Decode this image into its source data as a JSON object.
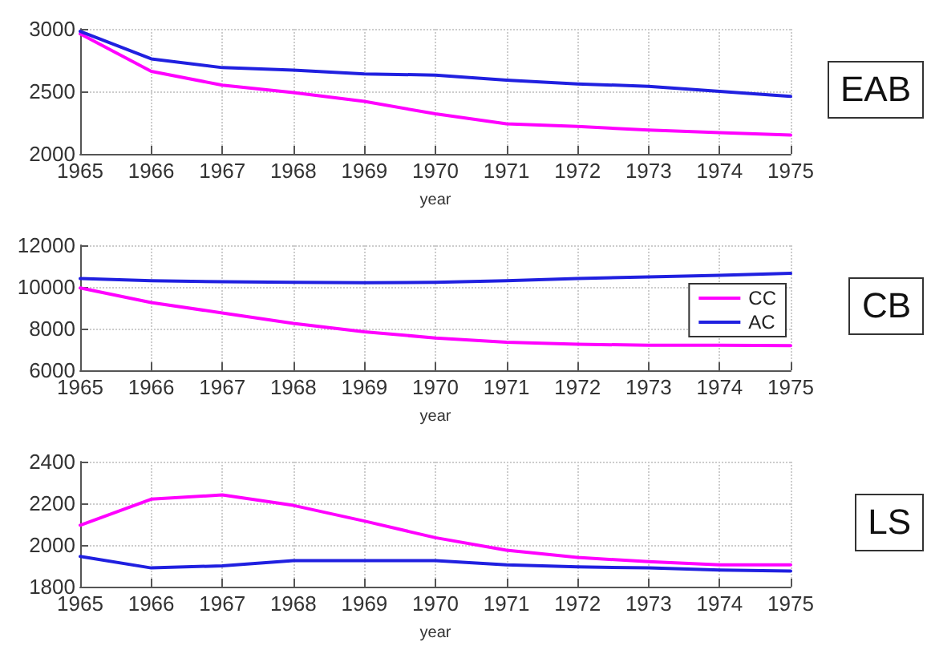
{
  "chart_data": [
    {
      "type": "line",
      "annotations": [
        "EAB"
      ],
      "xlabel": "year",
      "x": [
        1965,
        1966,
        1967,
        1968,
        1969,
        1970,
        1971,
        1972,
        1973,
        1974,
        1975
      ],
      "xlim": [
        1965,
        1975
      ],
      "xticks": [
        1965,
        1966,
        1967,
        1968,
        1969,
        1970,
        1971,
        1972,
        1973,
        1974,
        1975
      ],
      "ylim": [
        2000,
        3000
      ],
      "yticks": [
        2000,
        2500,
        3000
      ],
      "grid": true,
      "legend": false,
      "series": [
        {
          "color": "#ff00ff",
          "values": [
            2960,
            2660,
            2550,
            2490,
            2420,
            2320,
            2240,
            2220,
            2190,
            2170,
            2150
          ]
        },
        {
          "color": "#2020e0",
          "values": [
            2980,
            2760,
            2690,
            2670,
            2640,
            2630,
            2590,
            2560,
            2540,
            2500,
            2460
          ]
        }
      ]
    },
    {
      "type": "line",
      "annotations": [
        "CB"
      ],
      "xlabel": "year",
      "x": [
        1965,
        1966,
        1967,
        1968,
        1969,
        1970,
        1971,
        1972,
        1973,
        1974,
        1975
      ],
      "xlim": [
        1965,
        1975
      ],
      "xticks": [
        1965,
        1966,
        1967,
        1968,
        1969,
        1970,
        1971,
        1972,
        1973,
        1974,
        1975
      ],
      "ylim": [
        6000,
        12000
      ],
      "yticks": [
        6000,
        8000,
        10000,
        12000
      ],
      "grid": true,
      "legend": "right",
      "series": [
        {
          "name": "CC",
          "color": "#ff00ff",
          "values": [
            9950,
            9250,
            8750,
            8250,
            7850,
            7550,
            7350,
            7250,
            7200,
            7200,
            7180
          ]
        },
        {
          "name": "AC",
          "color": "#2020e0",
          "values": [
            10400,
            10300,
            10250,
            10220,
            10200,
            10220,
            10300,
            10400,
            10480,
            10560,
            10650
          ]
        }
      ]
    },
    {
      "type": "line",
      "annotations": [
        "LS"
      ],
      "xlabel": "year",
      "x": [
        1965,
        1966,
        1967,
        1968,
        1969,
        1970,
        1971,
        1972,
        1973,
        1974,
        1975
      ],
      "xlim": [
        1965,
        1975
      ],
      "xticks": [
        1965,
        1966,
        1967,
        1968,
        1969,
        1970,
        1971,
        1972,
        1973,
        1974,
        1975
      ],
      "ylim": [
        1800,
        2400
      ],
      "yticks": [
        1800,
        2000,
        2200,
        2400
      ],
      "grid": true,
      "legend": false,
      "series": [
        {
          "color": "#ff00ff",
          "values": [
            2095,
            2220,
            2240,
            2190,
            2115,
            2035,
            1975,
            1940,
            1920,
            1905,
            1905
          ]
        },
        {
          "color": "#2020e0",
          "values": [
            1945,
            1890,
            1900,
            1925,
            1925,
            1925,
            1905,
            1895,
            1890,
            1880,
            1875
          ]
        }
      ]
    }
  ]
}
